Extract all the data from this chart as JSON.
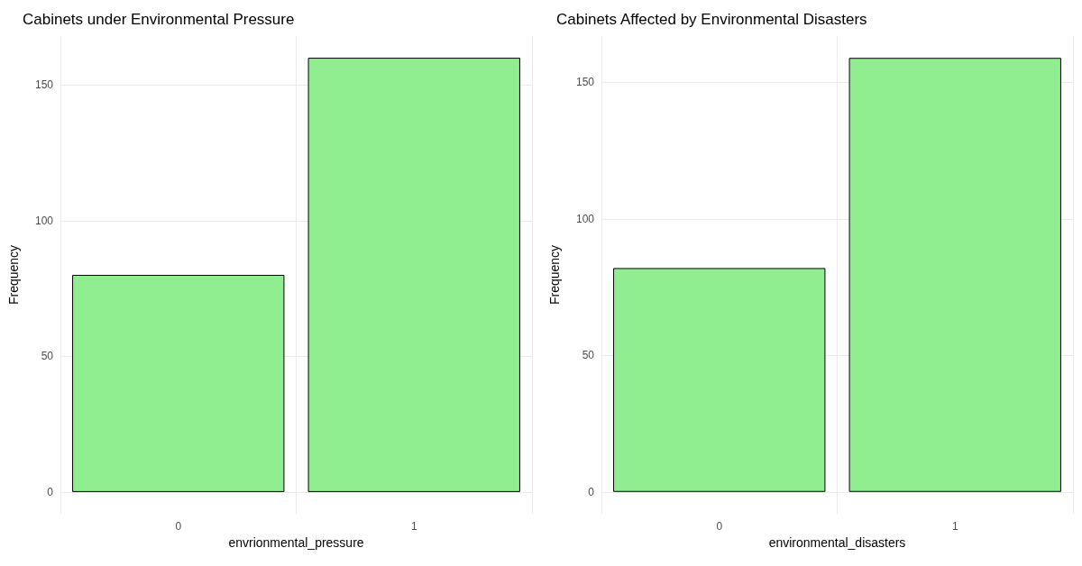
{
  "chart_data": [
    {
      "type": "bar",
      "title": "Cabinets under Environmental Pressure",
      "xlabel": "envrionmental_pressure",
      "ylabel": "Frequency",
      "categories": [
        "0",
        "1"
      ],
      "values": [
        80,
        160
      ],
      "color": "#90ee90",
      "ylim": [
        -8,
        168
      ],
      "yticks": [
        0,
        50,
        100,
        150
      ],
      "grid": true
    },
    {
      "type": "bar",
      "title": "Cabinets Affected by Environmental Disasters",
      "xlabel": "environmental_disasters",
      "ylabel": "Frequency",
      "categories": [
        "0",
        "1"
      ],
      "values": [
        82,
        159
      ],
      "color": "#90ee90",
      "ylim": [
        -8,
        167
      ],
      "yticks": [
        0,
        50,
        100,
        150
      ],
      "grid": true
    }
  ]
}
